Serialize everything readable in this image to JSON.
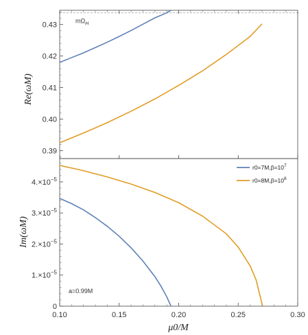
{
  "chart_data": [
    {
      "type": "line",
      "panel": "top",
      "ylabel": "Re(ωM)",
      "xlim": [
        0.1,
        0.3
      ],
      "ylim": [
        0.3875,
        0.4345
      ],
      "y_ticks": [
        "0.39",
        "0.40",
        "0.41",
        "0.42",
        "0.43"
      ],
      "y_tick_values": [
        0.39,
        0.4,
        0.41,
        0.42,
        0.43
      ],
      "reference_line": {
        "label": "mΩ_H",
        "y": 0.4337,
        "style": "dashed"
      },
      "series": [
        {
          "name": "r0=7M,β=10^7",
          "color": "#5E81B5",
          "x": [
            0.1,
            0.11,
            0.12,
            0.13,
            0.14,
            0.15,
            0.16,
            0.17,
            0.18,
            0.19,
            0.1935
          ],
          "y": [
            0.418,
            0.4195,
            0.421,
            0.4227,
            0.4244,
            0.4262,
            0.4281,
            0.4301,
            0.4321,
            0.4337,
            0.4345
          ]
        },
        {
          "name": "r0=8M,β=10^8",
          "color": "#E19C24",
          "x": [
            0.1,
            0.12,
            0.14,
            0.16,
            0.18,
            0.2,
            0.22,
            0.24,
            0.26,
            0.27
          ],
          "y": [
            0.3925,
            0.3956,
            0.3989,
            0.4025,
            0.4064,
            0.4107,
            0.4153,
            0.4205,
            0.4262,
            0.4302
          ]
        }
      ]
    },
    {
      "type": "line",
      "panel": "bottom",
      "xlabel": "μ0/M",
      "ylabel": "Im(ωM)",
      "xlim": [
        0.1,
        0.3
      ],
      "ylim": [
        0,
        4.75e-05
      ],
      "x_ticks": [
        "0.10",
        "0.15",
        "0.20",
        "0.25",
        "0.30"
      ],
      "x_tick_values": [
        0.1,
        0.15,
        0.2,
        0.25,
        0.3
      ],
      "y_ticks": [
        {
          "value": 0,
          "mant": "0",
          "exp": ""
        },
        {
          "value": 1e-05,
          "mant": "1.×10",
          "exp": "−5"
        },
        {
          "value": 2e-05,
          "mant": "2.×10",
          "exp": "−5"
        },
        {
          "value": 3e-05,
          "mant": "3.×10",
          "exp": "−5"
        },
        {
          "value": 4e-05,
          "mant": "4.×10",
          "exp": "−5"
        }
      ],
      "annotation": "a=0.99M",
      "legend_position": "top-right",
      "legend": [
        {
          "base": "r0=7M,β=10",
          "exp": "7",
          "color": "#5E81B5"
        },
        {
          "base": "r0=8M,β=10",
          "exp": "8",
          "color": "#E19C24"
        }
      ],
      "series": [
        {
          "name": "r0=7M,β=10^7",
          "color": "#5E81B5",
          "x": [
            0.1,
            0.11,
            0.12,
            0.13,
            0.14,
            0.15,
            0.16,
            0.17,
            0.18,
            0.185,
            0.19,
            0.1935
          ],
          "y": [
            3.47e-05,
            3.3e-05,
            3.1e-05,
            2.85e-05,
            2.57e-05,
            2.25e-05,
            1.88e-05,
            1.45e-05,
            9.5e-06,
            6.5e-06,
            3e-06,
            0.0
          ]
        },
        {
          "name": "r0=8M,β=10^8",
          "color": "#E19C24",
          "x": [
            0.1,
            0.12,
            0.14,
            0.16,
            0.18,
            0.2,
            0.22,
            0.24,
            0.25,
            0.26,
            0.265,
            0.2705
          ],
          "y": [
            4.53e-05,
            4.36e-05,
            4.16e-05,
            3.93e-05,
            3.66e-05,
            3.33e-05,
            2.9e-05,
            2.33e-05,
            1.9e-05,
            1.3e-05,
            8.5e-06,
            0.0
          ]
        }
      ]
    }
  ]
}
